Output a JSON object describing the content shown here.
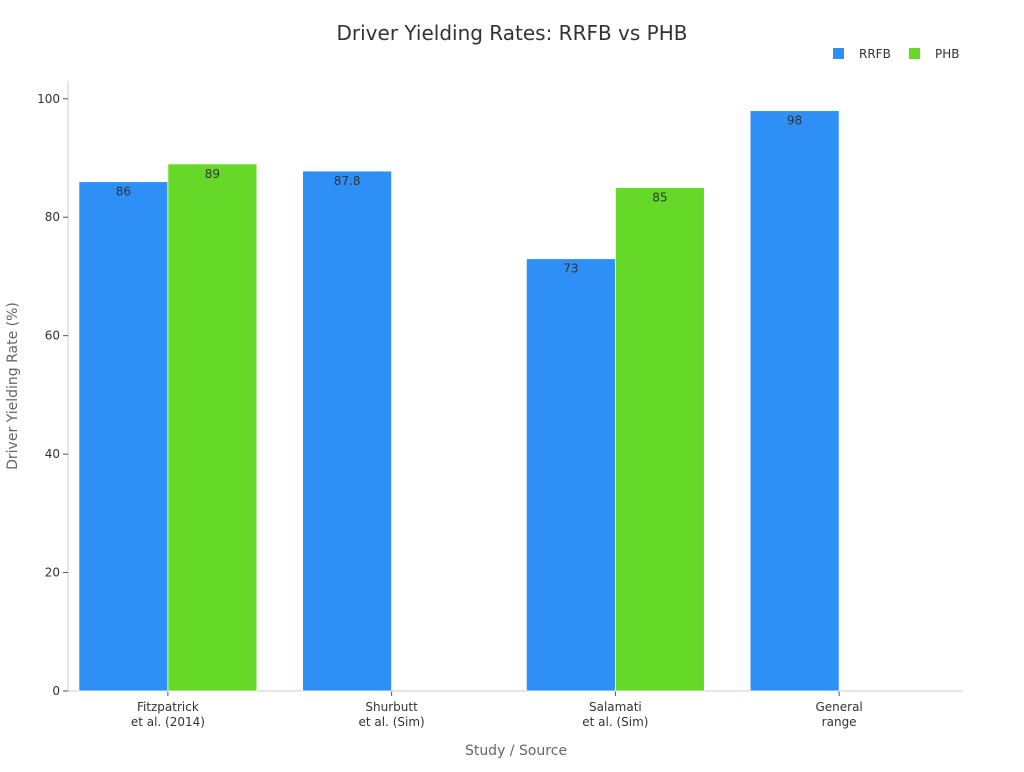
{
  "chart_data": {
    "type": "bar",
    "title": "Driver Yielding Rates: RRFB vs PHB",
    "xlabel": "Study / Source",
    "ylabel": "Driver Yielding Rate (%)",
    "ylim": [
      0,
      103
    ],
    "yticks": [
      0,
      20,
      40,
      60,
      80,
      100
    ],
    "grid": false,
    "legend_position": "top-right",
    "categories": [
      [
        "Fitzpatrick",
        "et al. (2014)"
      ],
      [
        "Shurbutt",
        "et al. (Sim)"
      ],
      [
        "Salamati",
        "et al. (Sim)"
      ],
      [
        "General",
        "range"
      ]
    ],
    "series": [
      {
        "name": "RRFB",
        "color": "#2e90f6",
        "values": [
          86,
          87.8,
          73,
          98
        ]
      },
      {
        "name": "PHB",
        "color": "#66d928",
        "values": [
          89,
          null,
          85,
          null
        ]
      }
    ]
  }
}
